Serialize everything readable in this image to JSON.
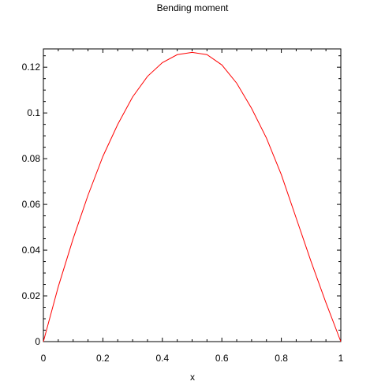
{
  "chart_data": {
    "type": "line",
    "title": "Bending moment",
    "xlabel": "x",
    "ylabel": "",
    "xlim": [
      0,
      1
    ],
    "ylim": [
      0,
      0.128
    ],
    "grid": false,
    "legend": "none",
    "x_ticks": [
      0,
      0.2,
      0.4,
      0.6,
      0.8,
      1
    ],
    "x_tick_labels": [
      "0",
      "0.2",
      "0.4",
      "0.6",
      "0.8",
      "1"
    ],
    "y_ticks": [
      0,
      0.02,
      0.04,
      0.06,
      0.08,
      0.1,
      0.12
    ],
    "y_tick_labels": [
      "0",
      "0.02",
      "0.04",
      "0.06",
      "0.08",
      "0.1",
      "0.12"
    ],
    "series": [
      {
        "color": "#ff0000",
        "x": [
          0,
          0.05,
          0.1,
          0.15,
          0.2,
          0.25,
          0.3,
          0.35,
          0.4,
          0.45,
          0.5,
          0.55,
          0.6,
          0.65,
          0.7,
          0.75,
          0.8,
          0.85,
          0.9,
          0.95,
          1
        ],
        "y": [
          0,
          0.024,
          0.045,
          0.064,
          0.081,
          0.095,
          0.107,
          0.116,
          0.122,
          0.1255,
          0.1265,
          0.1255,
          0.121,
          0.113,
          0.102,
          0.089,
          0.073,
          0.054,
          0.035,
          0.017,
          0
        ]
      }
    ]
  }
}
